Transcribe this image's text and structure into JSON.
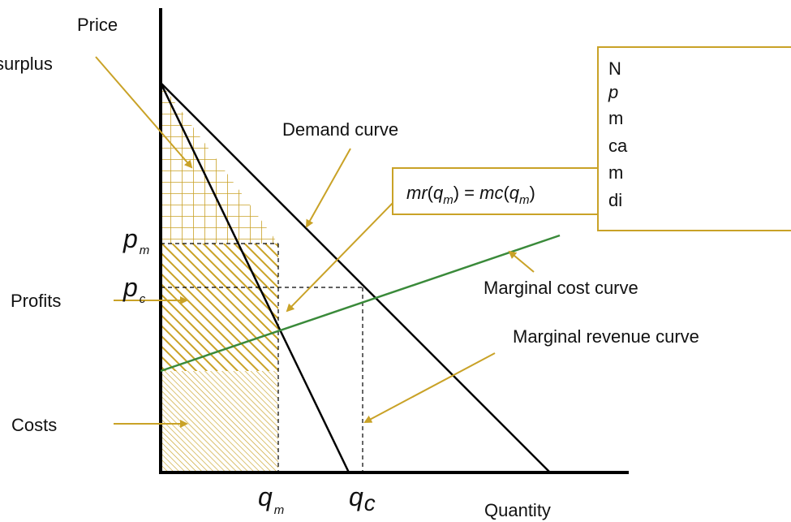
{
  "axes": {
    "y_label": "Price",
    "x_label": "Quantity"
  },
  "symbols": {
    "pm_main": "p",
    "pm_sub": "m",
    "pc_main": "p",
    "pc_sub": "c",
    "qm_main": "q",
    "qm_sub": "m",
    "qc": "q",
    "qc_sub": "c"
  },
  "labels": {
    "consumer_surplus": "surplus",
    "profits": "Profits",
    "costs": "Costs",
    "demand": "Demand curve",
    "marginal_cost": "Marginal cost  curve",
    "marginal_revenue": "Marginal revenue  curve"
  },
  "equation": {
    "mr": "mr",
    "q1": "q",
    "m1": "m",
    "eq": ") = ",
    "mc": "mc",
    "q2": "q",
    "m2": "m"
  },
  "note_lines": [
    "N",
    "p",
    "m",
    "ca",
    "m",
    "di"
  ],
  "colors": {
    "accent": "#c9a227",
    "marginal_cost": "#3a8a3a",
    "curve": "#000000"
  }
}
